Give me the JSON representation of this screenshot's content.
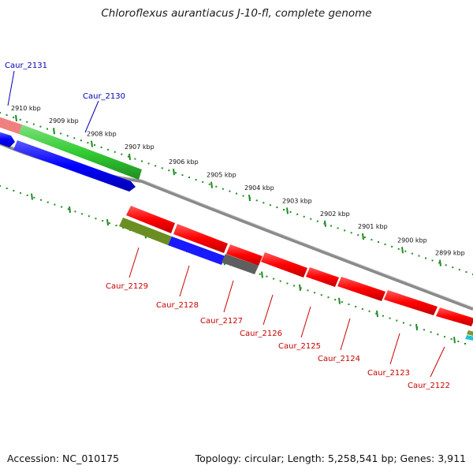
{
  "title": "Chloroflexus aurantiacus J-10-fl, complete genome",
  "footer": {
    "accession": "Accession: NC_010175",
    "summary": "Topology: circular; Length: 5,258,541 bp; Genes: 3,911"
  },
  "ruler": [
    "2910 kbp",
    "2909 kbp",
    "2908 kbp",
    "2907 kbp",
    "2906 kbp",
    "2905 kbp",
    "2904 kbp",
    "2903 kbp",
    "2902 kbp",
    "2901 kbp",
    "2900 kbp",
    "2899 kbp"
  ],
  "genes_top": [
    "Caur_2131",
    "Caur_2130"
  ],
  "genes_bottom": [
    "Caur_2129",
    "Caur_2128",
    "Caur_2127",
    "Caur_2126",
    "Caur_2125",
    "Caur_2124",
    "Caur_2123",
    "Caur_2122"
  ],
  "colors": {
    "forward_label": "#0000b4",
    "reverse_label": "#c80000",
    "red_feature": "#ff0000",
    "green_feature": "#33cc33",
    "blue_feature": "#0000ff",
    "olive_feature": "#6b8e23",
    "gray_feature": "#666666",
    "pink_feature": "#f08080",
    "backbone": "#888888",
    "tick": "#228b22"
  }
}
